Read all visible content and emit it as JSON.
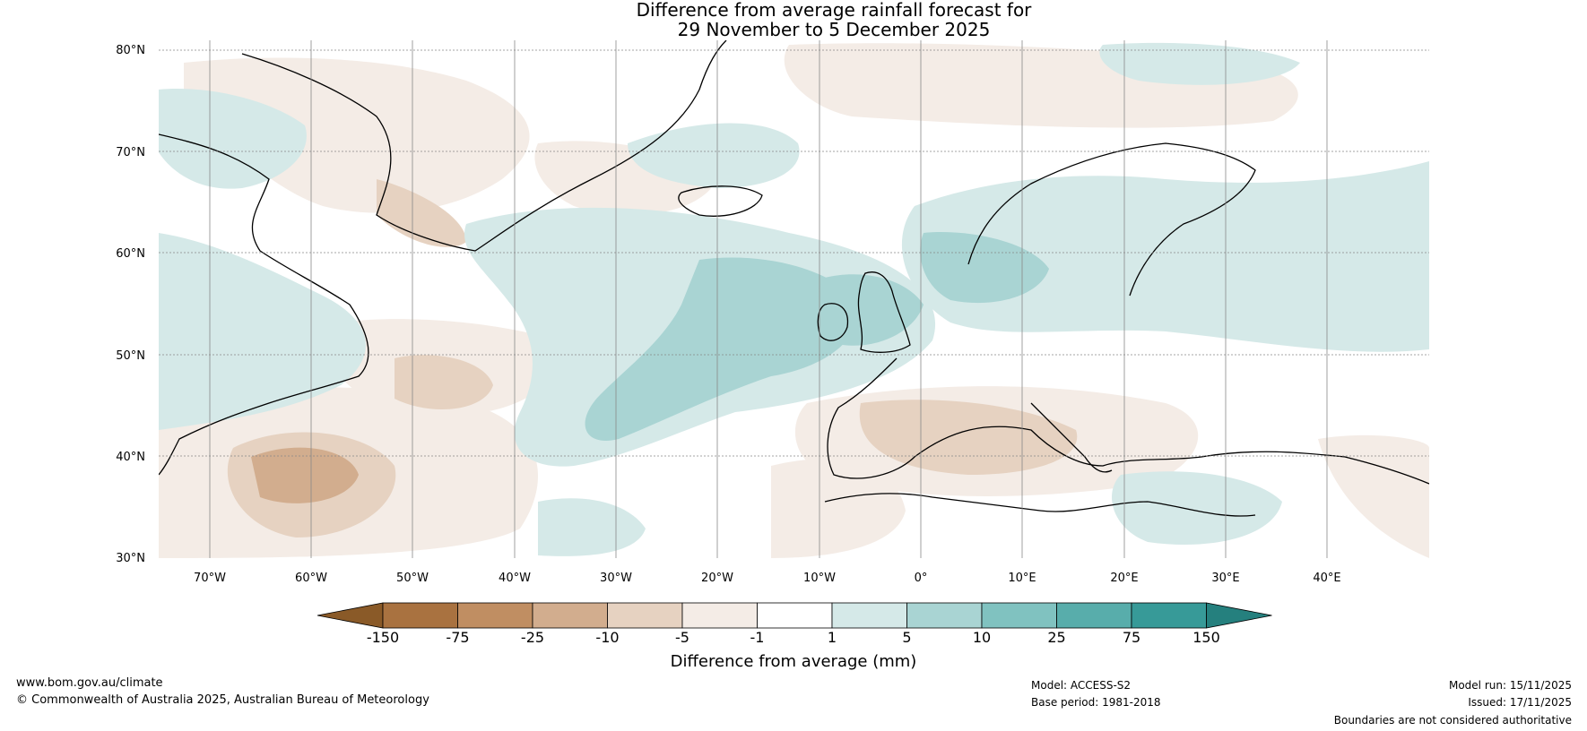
{
  "title": {
    "line1": "Difference from average rainfall forecast for",
    "line2": "29 November to 5 December 2025"
  },
  "map": {
    "lat_ticks": [
      "80°N",
      "70°N",
      "60°N",
      "50°N",
      "40°N",
      "30°N"
    ],
    "lon_ticks": [
      "70°W",
      "60°W",
      "50°W",
      "40°W",
      "30°W",
      "20°W",
      "10°W",
      "0°",
      "10°E",
      "20°E",
      "30°E",
      "40°E"
    ],
    "lon_range_deg": [
      -75,
      50
    ],
    "lat_range_deg": [
      30,
      81
    ]
  },
  "colorbar": {
    "label": "Difference from average (mm)",
    "ticks": [
      "-150",
      "-75",
      "-25",
      "-10",
      "-5",
      "-1",
      "1",
      "5",
      "10",
      "25",
      "75",
      "150"
    ],
    "colors": [
      "#8a5a28",
      "#a97240",
      "#c08e62",
      "#d2ad8e",
      "#e6d2c1",
      "#f4ece6",
      "#ffffff",
      "#d5e9e8",
      "#a9d4d3",
      "#80c2c0",
      "#58adab",
      "#379a98",
      "#25807e"
    ]
  },
  "footer": {
    "website": "www.bom.gov.au/climate",
    "copyright": "© Commonwealth of Australia 2025, Australian Bureau of Meteorology",
    "model": "Model: ACCESS-S2",
    "base_period": "Base period: 1981-2018",
    "model_run": "Model run: 15/11/2025",
    "issued": "Issued: 17/11/2025",
    "disclaimer": "Boundaries are not considered authoritative"
  }
}
